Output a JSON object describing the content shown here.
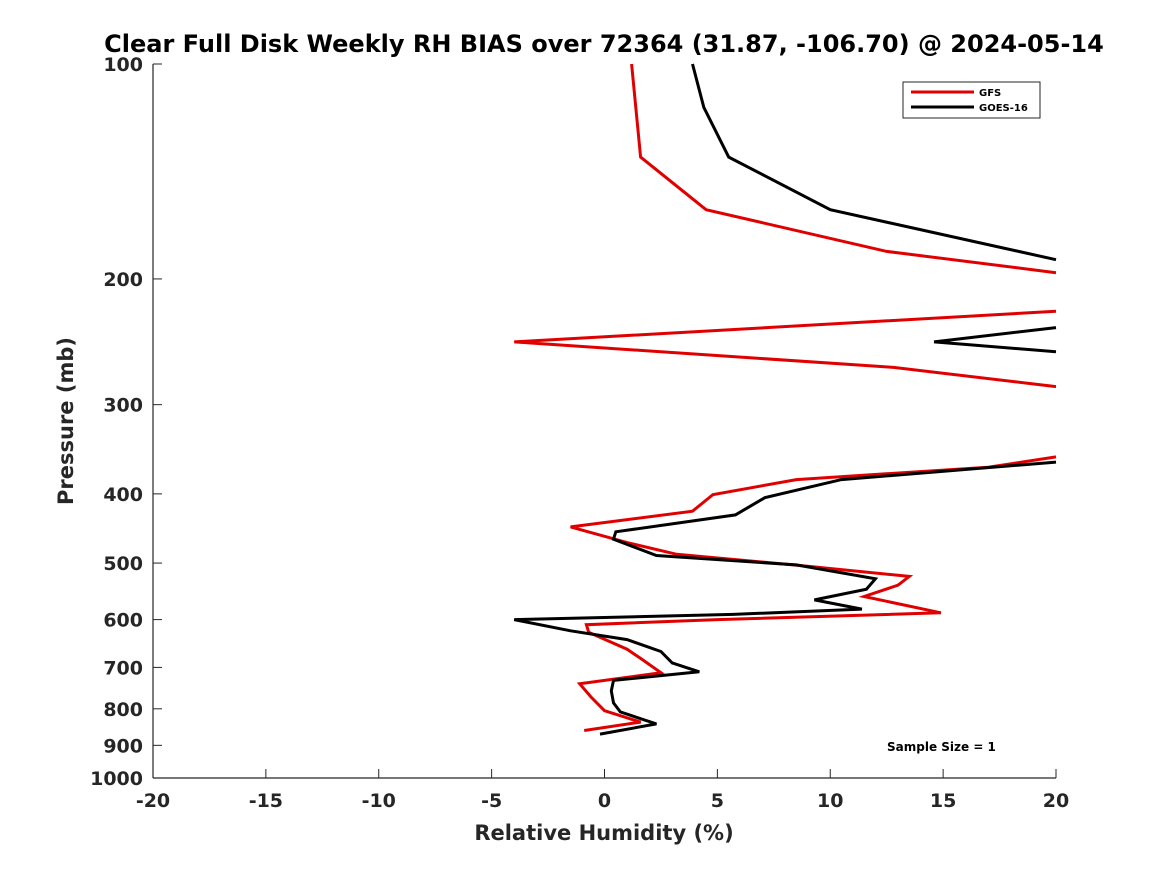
{
  "chart_data": {
    "type": "line",
    "title": "Clear Full Disk Weekly RH BIAS over 72364 (31.87, -106.70) @ 2024-05-14",
    "xlabel": "Relative Humidity (%)",
    "ylabel": "Pressure (mb)",
    "xlim": [
      -20,
      20
    ],
    "ylim": [
      100,
      1000
    ],
    "y_scale": "log",
    "y_reversed": true,
    "xticks": [
      -20,
      -15,
      -10,
      -5,
      0,
      5,
      10,
      15,
      20
    ],
    "yticks": [
      100,
      200,
      300,
      400,
      500,
      600,
      700,
      800,
      900,
      1000
    ],
    "grid": false,
    "legend_position": "top-right",
    "annotation": "Sample Size = 1",
    "series": [
      {
        "name": "GFS",
        "color": "#e00000",
        "points": [
          [
            1.2,
            100
          ],
          [
            1.6,
            135
          ],
          [
            4.5,
            160
          ],
          [
            12.5,
            183
          ],
          [
            20,
            196
          ],
          [
            null,
            null
          ],
          [
            20,
            222
          ],
          [
            -4,
            245
          ],
          [
            12.8,
            266
          ],
          [
            20,
            283
          ],
          [
            null,
            null
          ],
          [
            20,
            355
          ],
          [
            17,
            367
          ],
          [
            8.5,
            382
          ],
          [
            4.8,
            401
          ],
          [
            3.9,
            423
          ],
          [
            -1.5,
            445
          ],
          [
            1,
            468
          ],
          [
            3.2,
            486
          ],
          [
            9,
            505
          ],
          [
            13.5,
            522
          ],
          [
            13,
            537
          ],
          [
            11.5,
            557
          ],
          [
            14.9,
            587
          ],
          [
            5,
            600
          ],
          [
            -0.8,
            610
          ],
          [
            -0.7,
            625
          ],
          [
            1,
            660
          ],
          [
            1.6,
            680
          ],
          [
            2.5,
            712
          ],
          [
            -1.1,
            738
          ],
          [
            -0.6,
            770
          ],
          [
            0,
            805
          ],
          [
            1.6,
            835
          ],
          [
            -0.9,
            858
          ]
        ]
      },
      {
        "name": "GOES-16",
        "color": "#000000",
        "points": [
          [
            3.9,
            100
          ],
          [
            4.4,
            115
          ],
          [
            5.5,
            135
          ],
          [
            10,
            160
          ],
          [
            20,
            188
          ],
          [
            null,
            null
          ],
          [
            20,
            234
          ],
          [
            14.6,
            245
          ],
          [
            20,
            253
          ],
          [
            null,
            null
          ],
          [
            20,
            361
          ],
          [
            10.5,
            382
          ],
          [
            7.1,
            405
          ],
          [
            5.8,
            428
          ],
          [
            0.5,
            452
          ],
          [
            0.4,
            463
          ],
          [
            2.3,
            488
          ],
          [
            8.5,
            503
          ],
          [
            12,
            526
          ],
          [
            11.6,
            544
          ],
          [
            9.3,
            563
          ],
          [
            11.4,
            580
          ],
          [
            5.7,
            590
          ],
          [
            -4,
            600
          ],
          [
            -1.5,
            622
          ],
          [
            1,
            640
          ],
          [
            2.5,
            665
          ],
          [
            3,
            690
          ],
          [
            4.2,
            710
          ],
          [
            0.4,
            730
          ],
          [
            0.3,
            755
          ],
          [
            0.4,
            785
          ],
          [
            0.7,
            808
          ],
          [
            2.3,
            840
          ],
          [
            -0.2,
            868
          ]
        ]
      }
    ]
  }
}
